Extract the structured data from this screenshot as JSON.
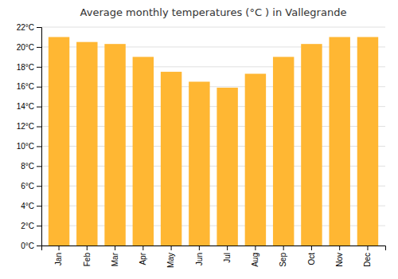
{
  "chart_data": {
    "type": "bar",
    "title": "Average monthly temperatures (°C ) in Vallegrande",
    "categories": [
      "Jan",
      "Feb",
      "Mar",
      "Apr",
      "May",
      "Jun",
      "Jul",
      "Aug",
      "Sep",
      "Oct",
      "Nov",
      "Dec"
    ],
    "values": [
      21.0,
      20.5,
      20.3,
      19.0,
      17.5,
      16.5,
      15.9,
      17.3,
      19.0,
      20.3,
      21.0,
      21.0
    ],
    "color": "#FFB733",
    "ylim": [
      0,
      22
    ],
    "yticks": [
      {
        "value": 0,
        "label": "0°C"
      },
      {
        "value": 2,
        "label": "2°C"
      },
      {
        "value": 4,
        "label": "4°C"
      },
      {
        "value": 6,
        "label": "6°C"
      },
      {
        "value": 8,
        "label": "8°C"
      },
      {
        "value": 10,
        "label": "10°C"
      },
      {
        "value": 12,
        "label": "12°C"
      },
      {
        "value": 14,
        "label": "14°C"
      },
      {
        "value": 16,
        "label": "16°C"
      },
      {
        "value": 18,
        "label": "18°C"
      },
      {
        "value": 20,
        "label": "20°C"
      },
      {
        "value": 22,
        "label": "22°C"
      }
    ],
    "grid": true
  }
}
